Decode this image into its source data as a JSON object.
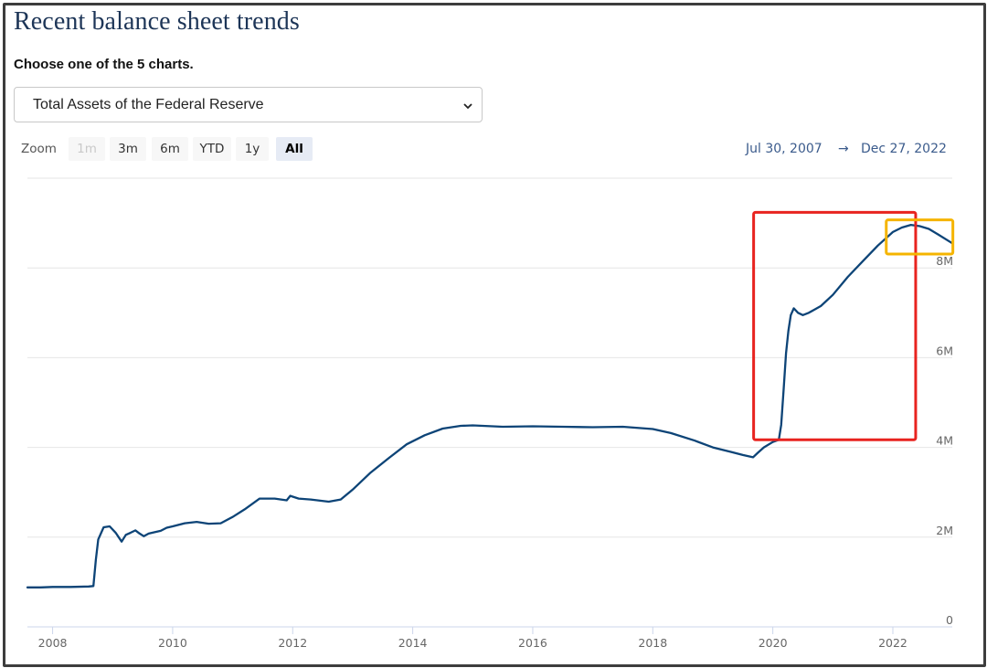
{
  "page": {
    "title": "Recent balance sheet trends",
    "subtitle": "Choose one of the 5 charts.",
    "select": {
      "value": "Total Assets of the Federal Reserve"
    }
  },
  "zoom": {
    "label": "Zoom",
    "buttons": [
      {
        "label": "1m",
        "state": "disabled"
      },
      {
        "label": "3m",
        "state": "normal"
      },
      {
        "label": "6m",
        "state": "normal"
      },
      {
        "label": "YTD",
        "state": "normal"
      },
      {
        "label": "1y",
        "state": "normal"
      },
      {
        "label": "All",
        "state": "active"
      }
    ]
  },
  "range": {
    "from": "Jul 30, 2007",
    "arrow": "→",
    "to": "Dec 27, 2022"
  },
  "colors": {
    "line": "#0d4477",
    "highlight_red": "#e8231f",
    "highlight_yellow": "#f5b400",
    "grid": "#e6e6e6",
    "title": "#1d3557"
  },
  "chart_data": {
    "type": "line",
    "title": "",
    "xlabel": "",
    "ylabel": "",
    "xlim": [
      2007.58,
      2022.99
    ],
    "ylim": [
      0,
      10000000
    ],
    "x_ticks": [
      2008,
      2010,
      2012,
      2014,
      2016,
      2018,
      2020,
      2022
    ],
    "x_tick_labels": [
      "2008",
      "2010",
      "2012",
      "2014",
      "2016",
      "2018",
      "2020",
      "2022"
    ],
    "y_ticks": [
      0,
      2000000,
      4000000,
      6000000,
      8000000
    ],
    "y_tick_labels": [
      "0",
      "2M",
      "4M",
      "6M",
      "8M"
    ],
    "grid": "horizontal",
    "series": [
      {
        "x": [
          2007.58,
          2007.8,
          2008.0,
          2008.3,
          2008.6,
          2008.68,
          2008.72,
          2008.76,
          2008.85,
          2008.95,
          2009.05,
          2009.15,
          2009.22,
          2009.3,
          2009.38,
          2009.45,
          2009.52,
          2009.6,
          2009.7,
          2009.8,
          2009.9,
          2010.0,
          2010.2,
          2010.4,
          2010.6,
          2010.8,
          2011.0,
          2011.2,
          2011.45,
          2011.7,
          2011.9,
          2011.96,
          2012.1,
          2012.3,
          2012.6,
          2012.8,
          2013.0,
          2013.3,
          2013.6,
          2013.9,
          2014.2,
          2014.5,
          2014.8,
          2015.0,
          2015.5,
          2016.0,
          2016.5,
          2017.0,
          2017.5,
          2018.0,
          2018.3,
          2018.7,
          2019.0,
          2019.3,
          2019.5,
          2019.67,
          2019.75,
          2019.85,
          2020.0,
          2020.1,
          2020.14,
          2020.18,
          2020.22,
          2020.26,
          2020.3,
          2020.35,
          2020.42,
          2020.5,
          2020.6,
          2020.8,
          2021.0,
          2021.25,
          2021.5,
          2021.75,
          2022.0,
          2022.15,
          2022.3,
          2022.45,
          2022.6,
          2022.75,
          2022.99
        ],
        "y": [
          880000,
          880000,
          890000,
          890000,
          900000,
          910000,
          1500000,
          1950000,
          2220000,
          2240000,
          2100000,
          1900000,
          2050000,
          2100000,
          2150000,
          2080000,
          2020000,
          2080000,
          2110000,
          2140000,
          2210000,
          2240000,
          2310000,
          2340000,
          2300000,
          2310000,
          2450000,
          2620000,
          2860000,
          2860000,
          2820000,
          2920000,
          2860000,
          2840000,
          2790000,
          2840000,
          3060000,
          3440000,
          3760000,
          4070000,
          4270000,
          4420000,
          4480000,
          4490000,
          4460000,
          4470000,
          4460000,
          4450000,
          4460000,
          4410000,
          4320000,
          4150000,
          4000000,
          3900000,
          3830000,
          3780000,
          3880000,
          4000000,
          4120000,
          4170000,
          4500000,
          5300000,
          6100000,
          6600000,
          6950000,
          7100000,
          7000000,
          6950000,
          7000000,
          7150000,
          7400000,
          7800000,
          8150000,
          8500000,
          8800000,
          8900000,
          8960000,
          8930000,
          8870000,
          8750000,
          8550000
        ]
      }
    ],
    "annotations": [
      {
        "shape": "rectangle",
        "color": "red",
        "x_range": [
          2019.68,
          2022.38
        ],
        "y_range": [
          4170000,
          9240000
        ]
      },
      {
        "shape": "rectangle",
        "color": "yellow",
        "x_range": [
          2021.89,
          2023.0
        ],
        "y_range": [
          8310000,
          9070000
        ]
      }
    ]
  }
}
